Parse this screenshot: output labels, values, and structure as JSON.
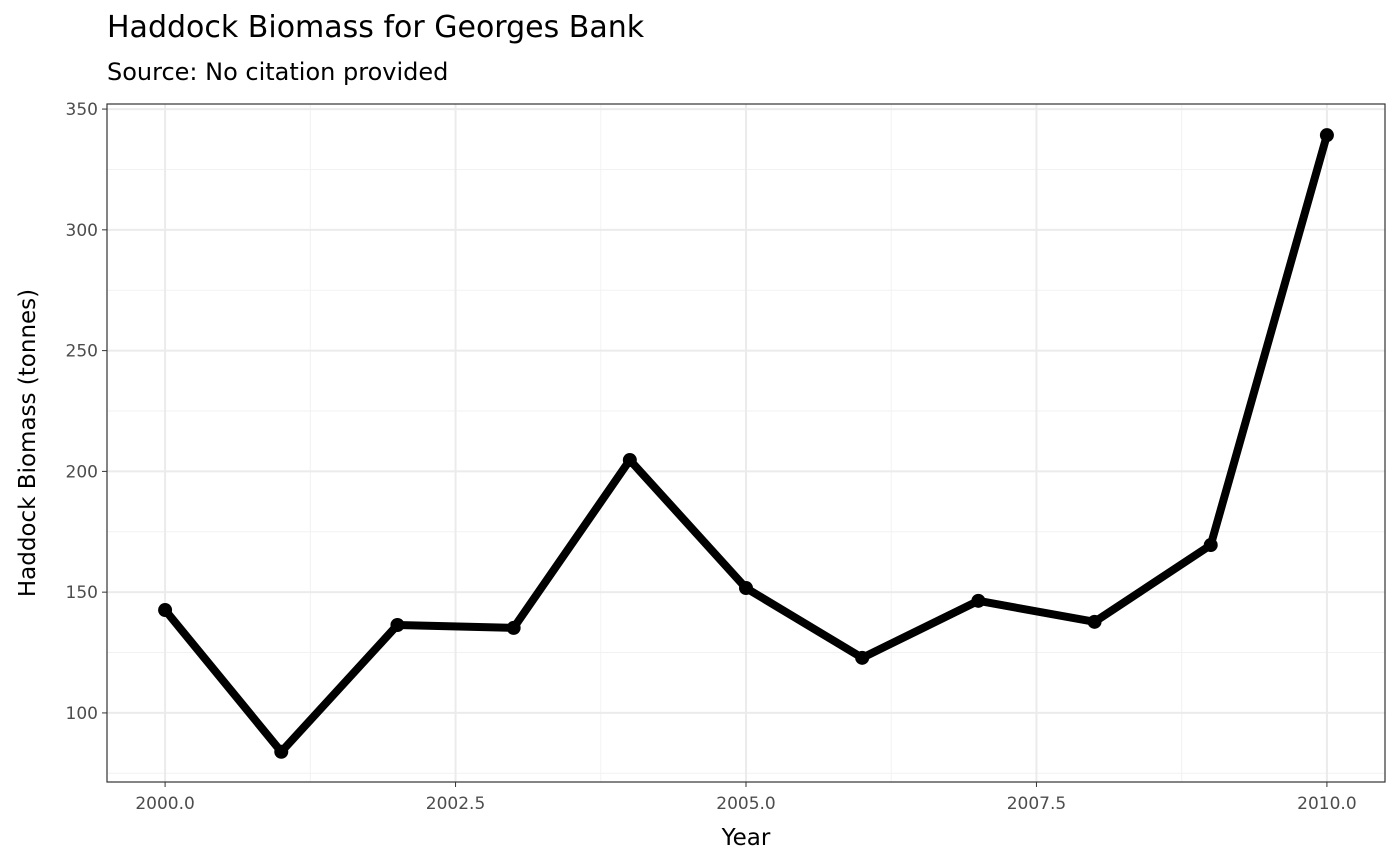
{
  "chart_data": {
    "type": "line",
    "title": "Haddock Biomass for Georges Bank",
    "subtitle": "Source: No citation provided",
    "xlabel": "Year",
    "ylabel": "Haddock Biomass (tonnes)",
    "x": [
      2000,
      2001,
      2002,
      2003,
      2004,
      2005,
      2006,
      2007,
      2008,
      2009,
      2010
    ],
    "values": [
      142.6,
      83.9,
      136.4,
      135.2,
      204.7,
      151.7,
      122.8,
      146.4,
      137.7,
      169.5,
      339.2
    ],
    "xlim": [
      1999.5,
      2010.5
    ],
    "ylim": [
      71.4,
      352.1
    ],
    "xticks": [
      "2000.0",
      "2002.5",
      "2005.0",
      "2007.5",
      "2010.0"
    ],
    "yticks": [
      "100",
      "150",
      "200",
      "250",
      "300",
      "350"
    ],
    "grid": true,
    "line_color": "#000000",
    "markers": true
  }
}
